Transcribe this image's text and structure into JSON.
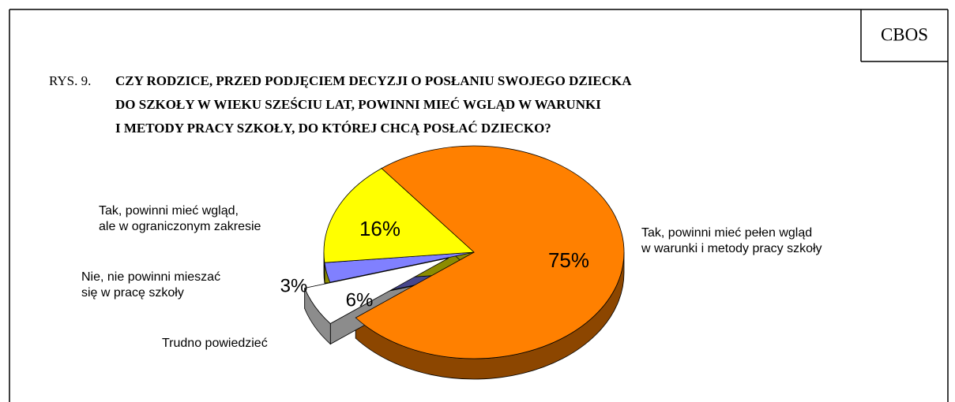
{
  "brand": "CBOS",
  "chart_data": {
    "type": "pie",
    "figure_label": "RYS. 9.",
    "title": [
      "CZY RODZICE, PRZED PODJĘCIEM DECYZJI O POSŁANIU SWOJEGO DZIECKA",
      "DO SZKOŁY W WIEKU SZEŚCIU LAT, POWINNI MIEĆ WGLĄD W WARUNKI",
      "I METODY PRACY SZKOŁY, DO KTÓREJ CHCĄ POSŁAĆ DZIECKO?"
    ],
    "categories": [
      "Tak, powinni mieć pełen wgląd\nw warunki i metody pracy szkoły",
      "Trudno powiedzieć",
      "Nie, nie powinni mieszać\nsię w pracę  szkoły",
      "Tak, powinni mieć wgląd,\nale w ograniczonym zakresie"
    ],
    "values": [
      75,
      6,
      3,
      16
    ],
    "value_labels": [
      "75%",
      "6%",
      "3%",
      "16%"
    ],
    "colors": [
      "#ff8000",
      "#ffffff",
      "#8080ff",
      "#ffff00"
    ],
    "exploded": "Trudno powiedzieć",
    "three_d": true
  }
}
